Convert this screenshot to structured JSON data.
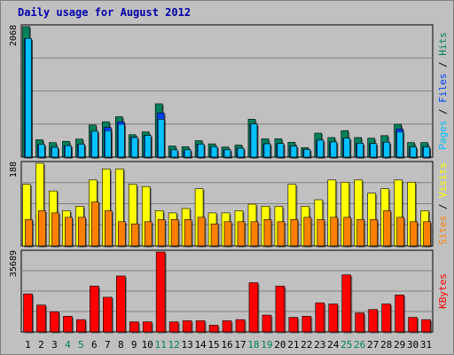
{
  "colors": {
    "background": "#c0c0c0",
    "plot": "#c0c0c0",
    "title": "#0000aa",
    "hits": "#00805c",
    "files": "#0040ff",
    "pages": "#00c0ff",
    "visits": "#ffff00",
    "sites": "#ff8000",
    "kbytes": "#ff0000",
    "weekend_label": "#00805c",
    "weekday_label": "#000000",
    "grid": "#808080"
  },
  "chart_data": [
    {
      "type": "bar",
      "title": "Daily usage for August 2012",
      "categories": [
        "1",
        "2",
        "3",
        "4",
        "5",
        "6",
        "7",
        "8",
        "9",
        "10",
        "11",
        "12",
        "13",
        "14",
        "15",
        "16",
        "17",
        "18",
        "19",
        "20",
        "21",
        "22",
        "23",
        "24",
        "25",
        "26",
        "27",
        "28",
        "29",
        "30",
        "31"
      ],
      "weekend_days": [
        "4",
        "5",
        "11",
        "12",
        "18",
        "19",
        "25",
        "26"
      ],
      "ymax_label": "2068",
      "ylim": [
        0,
        2068
      ],
      "legend": [
        "Pages",
        "Files",
        "Hits"
      ],
      "series": [
        {
          "name": "Hits",
          "values": [
            2068,
            275,
            230,
            250,
            285,
            510,
            560,
            640,
            355,
            400,
            845,
            175,
            165,
            260,
            210,
            160,
            190,
            600,
            290,
            290,
            235,
            150,
            380,
            310,
            420,
            310,
            300,
            340,
            520,
            230,
            230
          ]
        },
        {
          "name": "Files",
          "values": [
            1880,
            200,
            155,
            180,
            205,
            410,
            470,
            560,
            315,
            345,
            700,
            115,
            115,
            205,
            165,
            115,
            140,
            525,
            210,
            215,
            175,
            120,
            270,
            240,
            300,
            220,
            215,
            235,
            445,
            160,
            160
          ]
        },
        {
          "name": "Pages",
          "values": [
            1880,
            200,
            155,
            180,
            205,
            410,
            420,
            520,
            310,
            345,
            600,
            115,
            115,
            205,
            165,
            115,
            140,
            525,
            210,
            215,
            175,
            120,
            270,
            240,
            300,
            220,
            215,
            235,
            400,
            160,
            160
          ]
        }
      ]
    },
    {
      "type": "bar",
      "ymax_label": "188",
      "ylim": [
        0,
        188
      ],
      "legend": [
        "Sites",
        "Visits"
      ],
      "series": [
        {
          "name": "Visits",
          "values": [
            140,
            188,
            125,
            80,
            90,
            150,
            175,
            175,
            140,
            135,
            80,
            75,
            85,
            130,
            75,
            75,
            80,
            95,
            90,
            90,
            140,
            90,
            105,
            150,
            145,
            150,
            120,
            130,
            150,
            145,
            80
          ]
        },
        {
          "name": "Sites",
          "values": [
            60,
            80,
            75,
            65,
            65,
            100,
            80,
            55,
            50,
            55,
            60,
            60,
            60,
            65,
            50,
            55,
            55,
            55,
            60,
            55,
            60,
            65,
            60,
            65,
            65,
            60,
            60,
            80,
            65,
            55,
            55
          ]
        }
      ]
    },
    {
      "type": "bar",
      "ymax_label": "35689",
      "ylim": [
        0,
        35689
      ],
      "legend": [
        "KBytes"
      ],
      "series": [
        {
          "name": "KBytes",
          "values": [
            17000,
            12000,
            9000,
            7000,
            5500,
            20500,
            15500,
            25000,
            4500,
            4500,
            35689,
            4500,
            5000,
            5000,
            3000,
            5000,
            5500,
            22000,
            7500,
            20500,
            6500,
            7000,
            13000,
            12500,
            25500,
            8500,
            10000,
            12500,
            16500,
            6500,
            5500
          ]
        }
      ]
    }
  ]
}
